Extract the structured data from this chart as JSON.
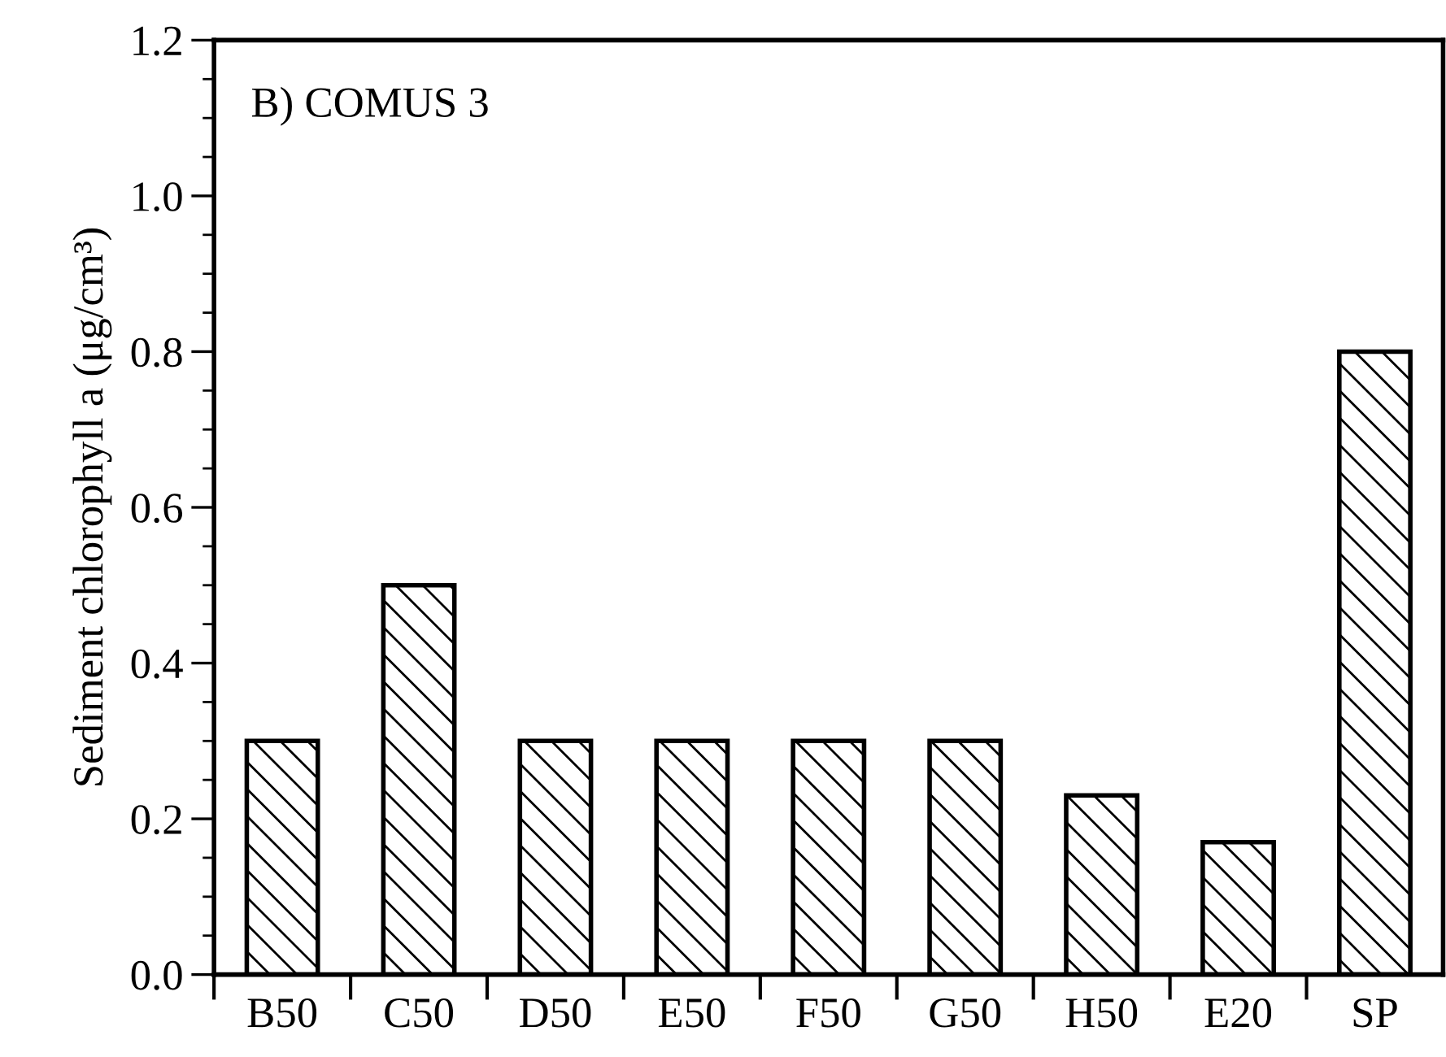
{
  "chart_data": {
    "type": "bar",
    "categories": [
      "B50",
      "C50",
      "D50",
      "E50",
      "F50",
      "G50",
      "H50",
      "E20",
      "SP"
    ],
    "values": [
      0.3,
      0.5,
      0.3,
      0.3,
      0.3,
      0.3,
      0.23,
      0.17,
      0.8
    ],
    "color": "#000000",
    "ylabel": "Sediment chlorophyll a (μg/cm³)",
    "annotations": [
      "B) COMUS 3"
    ],
    "ylim": [
      0,
      1.2
    ],
    "yticks": [
      {
        "value": 0,
        "label": "0.0"
      },
      {
        "value": 0.2,
        "label": "0.2"
      },
      {
        "value": 0.4,
        "label": "0.4"
      },
      {
        "value": 0.6,
        "label": "0.6"
      },
      {
        "value": 0.8,
        "label": "0.8"
      },
      {
        "value": 1.0,
        "label": "1.0"
      },
      {
        "value": 1.2,
        "label": "1.2"
      }
    ],
    "grid": false,
    "legend": false
  }
}
